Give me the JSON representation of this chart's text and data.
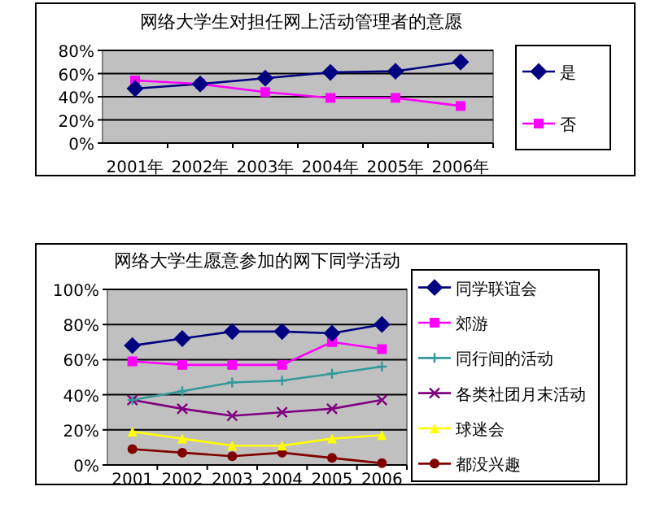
{
  "chart_data": [
    {
      "type": "line",
      "title": "网络大学生对担任网上活动管理者的意愿",
      "categories": [
        "2001年",
        "2002年",
        "2003年",
        "2004年",
        "2005年",
        "2006年"
      ],
      "ylim": [
        0,
        80
      ],
      "yticks": [
        {
          "value": 0,
          "label": "0%"
        },
        {
          "value": 20,
          "label": "20%"
        },
        {
          "value": 40,
          "label": "40%"
        },
        {
          "value": 60,
          "label": "60%"
        },
        {
          "value": 80,
          "label": "80%"
        }
      ],
      "grid": "y",
      "legend": "right",
      "series": [
        {
          "name": "是",
          "color": "#000080",
          "marker": "diamond",
          "values": [
            47,
            51,
            56,
            61,
            62,
            70
          ]
        },
        {
          "name": "否",
          "color": "#ff00ff",
          "marker": "square",
          "values": [
            54,
            51,
            44,
            39,
            39,
            32
          ]
        }
      ]
    },
    {
      "type": "line",
      "title": "网络大学生愿意参加的网下同学活动",
      "categories": [
        "2001",
        "2002",
        "2003",
        "2004",
        "2005",
        "2006"
      ],
      "ylim": [
        0,
        100
      ],
      "yticks": [
        {
          "value": 0,
          "label": "0%"
        },
        {
          "value": 20,
          "label": "20%"
        },
        {
          "value": 40,
          "label": "40%"
        },
        {
          "value": 60,
          "label": "60%"
        },
        {
          "value": 80,
          "label": "80%"
        },
        {
          "value": 100,
          "label": "100%"
        }
      ],
      "grid": "y",
      "legend": "right",
      "series": [
        {
          "name": "同学联谊会",
          "color": "#000080",
          "marker": "diamond",
          "values": [
            68,
            72,
            76,
            76,
            75,
            80
          ]
        },
        {
          "name": "郊游",
          "color": "#ff00ff",
          "marker": "square",
          "values": [
            59,
            57,
            57,
            57,
            70,
            66
          ]
        },
        {
          "name": "同行间的活动",
          "color": "#339999",
          "marker": "cross",
          "values": [
            37,
            42,
            47,
            48,
            52,
            56
          ]
        },
        {
          "name": "各类社团月末活动",
          "color": "#800080",
          "marker": "x",
          "values": [
            37,
            32,
            28,
            30,
            32,
            37
          ]
        },
        {
          "name": "球迷会",
          "color": "#ffff00",
          "marker": "triangle",
          "values": [
            19,
            15,
            11,
            11,
            15,
            17
          ]
        },
        {
          "name": "都没兴趣",
          "color": "#800000",
          "marker": "circle",
          "values": [
            9,
            7,
            5,
            7,
            4,
            1
          ]
        }
      ]
    }
  ]
}
